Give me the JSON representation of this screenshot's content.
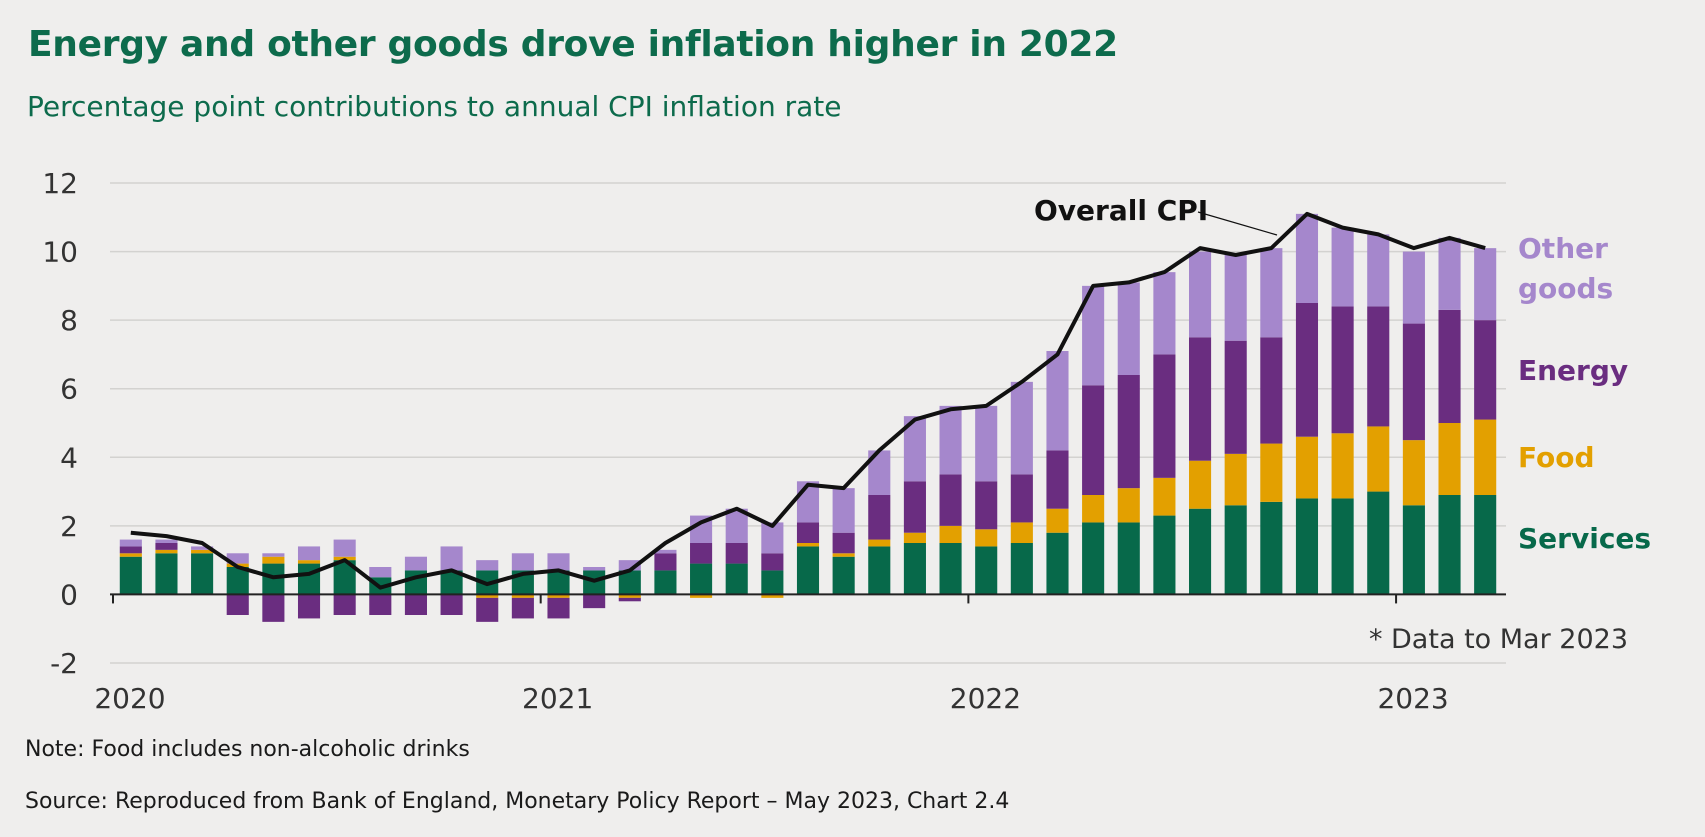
{
  "title": "Energy and other goods drove inflation higher in 2022",
  "subtitle": "Percentage point contributions to annual CPI inflation rate",
  "note": "Note: Food includes non-alcoholic drinks",
  "source": "Source: Reproduced from Bank of England, Monetary Policy Report – May 2023, Chart 2.4",
  "colors": {
    "services": "#07694a",
    "food": "#e3a000",
    "energy": "#6a2d80",
    "other_goods": "#a587cc",
    "cpi_line": "#111111",
    "grid": "#d3d2d0",
    "axis_text": "#333333"
  },
  "chart_data": {
    "type": "bar",
    "stacked": true,
    "ylim": [
      -2,
      12
    ],
    "yticks": [
      -2,
      0,
      2,
      4,
      6,
      8,
      10,
      12
    ],
    "xtick_labels": [
      "2020",
      "2021",
      "2022",
      "2023"
    ],
    "annotation": "* Data to Mar 2023",
    "line_label": "Overall CPI",
    "grid": true,
    "legend_position": "right",
    "categories": [
      "Jan 2020",
      "Feb 2020",
      "Mar 2020",
      "Apr 2020",
      "May 2020",
      "Jun 2020",
      "Jul 2020",
      "Aug 2020",
      "Sep 2020",
      "Oct 2020",
      "Nov 2020",
      "Dec 2020",
      "Jan 2021",
      "Feb 2021",
      "Mar 2021",
      "Apr 2021",
      "May 2021",
      "Jun 2021",
      "Jul 2021",
      "Aug 2021",
      "Sep 2021",
      "Oct 2021",
      "Nov 2021",
      "Dec 2021",
      "Jan 2022",
      "Feb 2022",
      "Mar 2022",
      "Apr 2022",
      "May 2022",
      "Jun 2022",
      "Jul 2022",
      "Aug 2022",
      "Sep 2022",
      "Oct 2022",
      "Nov 2022",
      "Dec 2022",
      "Jan 2023",
      "Feb 2023",
      "Mar 2023"
    ],
    "series": [
      {
        "name": "Services",
        "key": "services",
        "values": [
          1.1,
          1.2,
          1.2,
          0.8,
          0.9,
          0.9,
          1.0,
          0.5,
          0.7,
          0.7,
          0.7,
          0.7,
          0.7,
          0.7,
          0.7,
          0.7,
          0.9,
          0.9,
          0.7,
          1.4,
          1.1,
          1.4,
          1.5,
          1.5,
          1.4,
          1.5,
          1.8,
          2.1,
          2.1,
          2.3,
          2.5,
          2.6,
          2.7,
          2.8,
          2.8,
          3.0,
          2.6,
          2.9,
          2.9
        ]
      },
      {
        "name": "Food",
        "key": "food",
        "values": [
          0.1,
          0.1,
          0.1,
          0.1,
          0.2,
          0.1,
          0.1,
          0.0,
          0.0,
          0.0,
          -0.1,
          -0.1,
          -0.1,
          0.0,
          -0.1,
          0.0,
          -0.1,
          0.0,
          -0.1,
          0.1,
          0.1,
          0.2,
          0.3,
          0.5,
          0.5,
          0.6,
          0.7,
          0.8,
          1.0,
          1.1,
          1.4,
          1.5,
          1.7,
          1.8,
          1.9,
          1.9,
          1.9,
          2.1,
          2.2
        ]
      },
      {
        "name": "Energy",
        "key": "energy",
        "values": [
          0.2,
          0.2,
          0.0,
          -0.6,
          -0.8,
          -0.7,
          -0.6,
          -0.6,
          -0.6,
          -0.6,
          -0.7,
          -0.6,
          -0.6,
          -0.4,
          -0.1,
          0.5,
          0.6,
          0.6,
          0.5,
          0.6,
          0.6,
          1.3,
          1.5,
          1.5,
          1.4,
          1.4,
          1.7,
          3.2,
          3.3,
          3.6,
          3.6,
          3.3,
          3.1,
          3.9,
          3.7,
          3.5,
          3.4,
          3.3,
          2.9
        ]
      },
      {
        "name": "Other goods",
        "key": "other_goods",
        "values": [
          0.2,
          0.1,
          0.1,
          0.3,
          0.1,
          0.4,
          0.5,
          0.3,
          0.4,
          0.7,
          0.3,
          0.5,
          0.5,
          0.1,
          0.3,
          0.1,
          0.8,
          1.0,
          0.9,
          1.2,
          1.3,
          1.3,
          1.9,
          2.0,
          2.2,
          2.7,
          2.9,
          2.9,
          2.7,
          2.4,
          2.5,
          2.5,
          2.6,
          2.6,
          2.3,
          2.1,
          2.1,
          2.1,
          2.1
        ]
      },
      {
        "name": "Overall CPI",
        "key": "cpi",
        "type": "line",
        "values": [
          1.8,
          1.7,
          1.5,
          0.8,
          0.5,
          0.6,
          1.0,
          0.2,
          0.5,
          0.7,
          0.3,
          0.6,
          0.7,
          0.4,
          0.7,
          1.5,
          2.1,
          2.5,
          2.0,
          3.2,
          3.1,
          4.2,
          5.1,
          5.4,
          5.5,
          6.2,
          7.0,
          9.0,
          9.1,
          9.4,
          10.1,
          9.9,
          10.1,
          11.1,
          10.7,
          10.5,
          10.1,
          10.4,
          10.1
        ]
      }
    ],
    "legend": [
      {
        "key": "other_goods",
        "label_lines": [
          "Other",
          "goods"
        ]
      },
      {
        "key": "energy",
        "label_lines": [
          "Energy"
        ]
      },
      {
        "key": "food",
        "label_lines": [
          "Food"
        ]
      },
      {
        "key": "services",
        "label_lines": [
          "Services"
        ]
      }
    ]
  }
}
